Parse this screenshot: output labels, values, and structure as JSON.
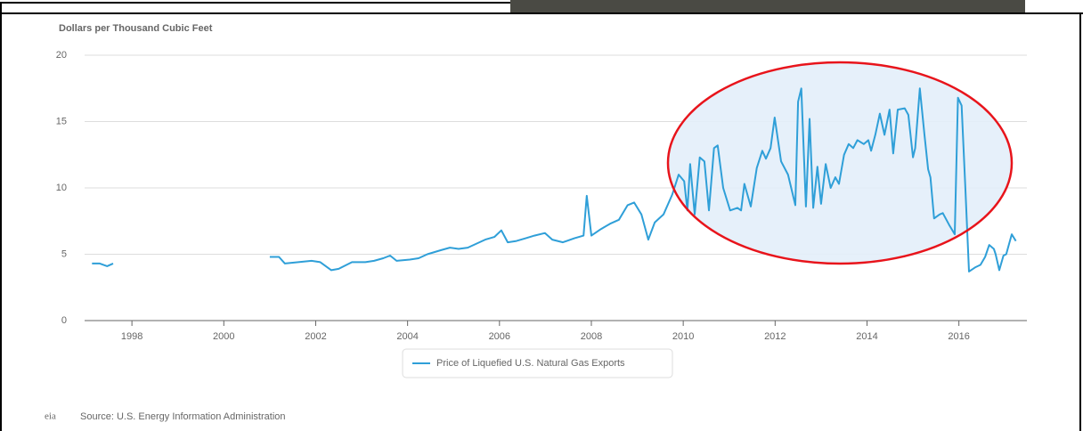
{
  "chart_data": {
    "type": "line",
    "title": "Dollars per Thousand Cubic Feet",
    "source": "Source: U.S. Energy Information Administration",
    "logo": "eia",
    "xlim": [
      1996.97,
      2017.48
    ],
    "xticks": [
      1998,
      2000,
      2002,
      2004,
      2006,
      2008,
      2010,
      2012,
      2014,
      2016
    ],
    "ylim": [
      0,
      20
    ],
    "yticks": [
      0,
      5,
      10,
      15,
      20
    ],
    "grid": true,
    "legend": "bottom",
    "series": [
      {
        "name": "Price of Liquefied U.S. Natural Gas Exports",
        "color": "#2f9fd8",
        "x": [
          1997.13,
          1997.3,
          1997.46,
          1997.59,
          1999,
          2001.0,
          2001.2,
          2001.33,
          2001.62,
          2001.91,
          2002.1,
          2002.34,
          2002.5,
          2002.79,
          2003.08,
          2003.27,
          2003.47,
          2003.62,
          2003.76,
          2004.05,
          2004.24,
          2004.43,
          2004.72,
          2004.92,
          2005.11,
          2005.31,
          2005.5,
          2005.69,
          2005.89,
          2006.04,
          2006.18,
          2006.37,
          2006.57,
          2006.76,
          2006.99,
          2007.15,
          2007.38,
          2007.63,
          2007.83,
          2007.9,
          2008.0,
          2008.21,
          2008.41,
          2008.6,
          2008.79,
          2008.93,
          2009.09,
          2009.24,
          2009.38,
          2009.57,
          2009.76,
          2009.9,
          2010.02,
          2010.09,
          2010.15,
          2010.25,
          2010.36,
          2010.46,
          2010.56,
          2010.67,
          2010.75,
          2010.87,
          2011.02,
          2011.18,
          2011.26,
          2011.33,
          2011.47,
          2011.6,
          2011.72,
          2011.8,
          2011.9,
          2011.99,
          2012.13,
          2012.28,
          2012.44,
          2012.5,
          2012.57,
          2012.67,
          2012.75,
          2012.83,
          2012.92,
          2013.0,
          2013.1,
          2013.21,
          2013.31,
          2013.39,
          2013.5,
          2013.6,
          2013.7,
          2013.79,
          2013.93,
          2014.03,
          2014.09,
          2014.18,
          2014.28,
          2014.38,
          2014.49,
          2014.57,
          2014.67,
          2014.82,
          2014.9,
          2015.0,
          2015.05,
          2015.15,
          2015.25,
          2015.33,
          2015.38,
          2015.46,
          2015.58,
          2015.65,
          2015.79,
          2015.91,
          2015.98,
          2016.06,
          2016.14,
          2016.22,
          2016.35,
          2016.47,
          2016.57,
          2016.66,
          2016.76,
          2016.8,
          2016.88,
          2016.97,
          2017.03,
          2017.15,
          2017.24
        ],
        "values": [
          4.3,
          4.3,
          4.1,
          4.3,
          null,
          4.8,
          4.8,
          4.3,
          4.4,
          4.5,
          4.4,
          3.8,
          3.9,
          4.4,
          4.4,
          4.5,
          4.7,
          4.9,
          4.5,
          4.6,
          4.7,
          5.0,
          5.3,
          5.5,
          5.4,
          5.5,
          5.8,
          6.1,
          6.3,
          6.8,
          5.9,
          6.0,
          6.2,
          6.4,
          6.6,
          6.1,
          5.9,
          6.2,
          6.4,
          9.4,
          6.4,
          6.9,
          7.3,
          7.6,
          8.7,
          8.9,
          8.0,
          6.1,
          7.4,
          8.0,
          9.5,
          11.0,
          10.5,
          8.3,
          11.8,
          8.0,
          12.3,
          12.0,
          8.3,
          13.0,
          13.2,
          10.0,
          8.3,
          8.5,
          8.3,
          10.3,
          8.6,
          11.5,
          12.8,
          12.2,
          13.0,
          15.3,
          12.0,
          11.0,
          8.7,
          16.5,
          17.5,
          8.6,
          15.2,
          8.5,
          11.6,
          8.8,
          11.8,
          10.0,
          10.8,
          10.3,
          12.5,
          13.3,
          13.0,
          13.6,
          13.3,
          13.6,
          12.8,
          14.0,
          15.6,
          14.0,
          15.9,
          12.6,
          15.9,
          16.0,
          15.5,
          12.3,
          13.0,
          17.5,
          14.0,
          11.4,
          10.8,
          7.7,
          8.0,
          8.1,
          7.2,
          6.5,
          16.8,
          16.2,
          10.0,
          3.7,
          4.0,
          4.2,
          4.8,
          5.7,
          5.4,
          5.0,
          3.8,
          4.9,
          5.0,
          6.5,
          6.0
        ]
      }
    ]
  }
}
